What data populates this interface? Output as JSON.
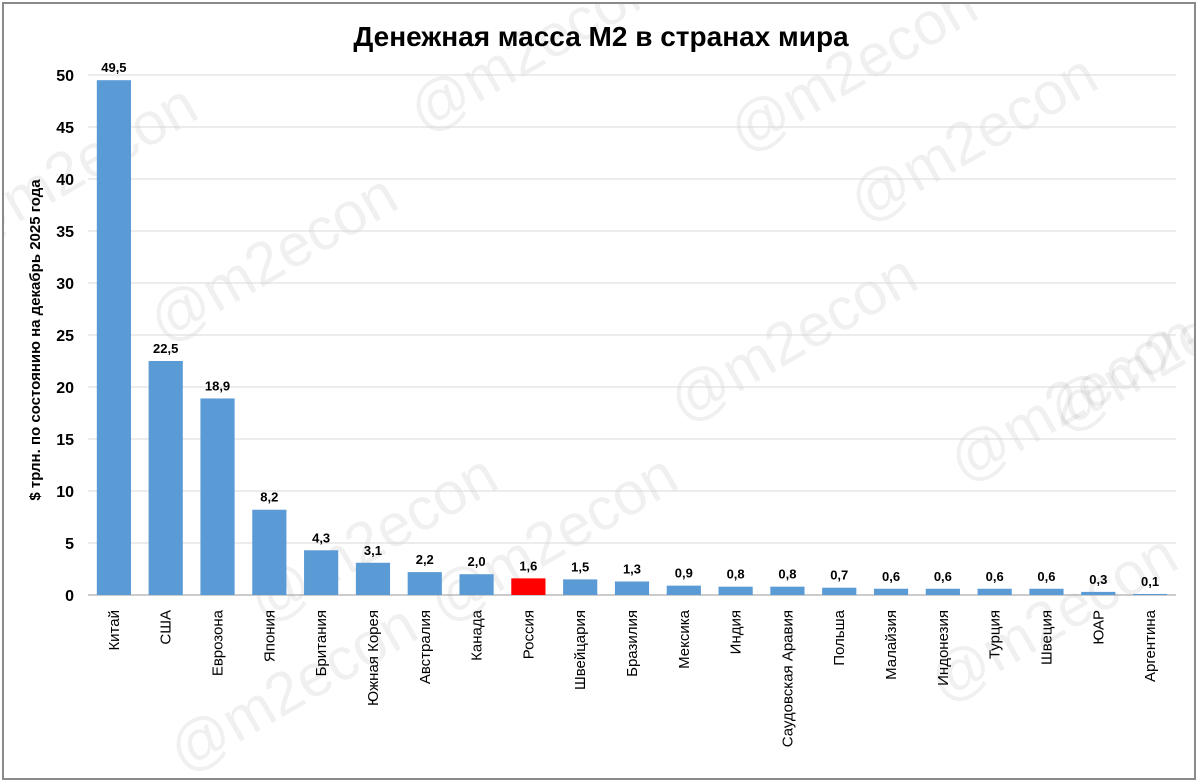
{
  "chart_data": {
    "type": "bar",
    "title": "Денежная масса М2 в странах мира",
    "ylabel": "$ трлн. по состоянию на декабрь 2025 года",
    "xlabel": "",
    "ylim": [
      0,
      50
    ],
    "yticks": [
      0,
      5,
      10,
      15,
      20,
      25,
      30,
      35,
      40,
      45,
      50
    ],
    "grid": true,
    "categories": [
      "Китай",
      "США",
      "Еврозона",
      "Япония",
      "Британия",
      "Южная Корея",
      "Австралия",
      "Канада",
      "Россия",
      "Швейцария",
      "Бразилия",
      "Мексика",
      "Индия",
      "Саудовская Аравия",
      "Польша",
      "Малайзия",
      "Индонезия",
      "Турция",
      "Швеция",
      "ЮАР",
      "Аргентина"
    ],
    "values": [
      49.5,
      22.5,
      18.9,
      8.2,
      4.3,
      3.1,
      2.2,
      2.0,
      1.6,
      1.5,
      1.3,
      0.9,
      0.8,
      0.8,
      0.7,
      0.6,
      0.6,
      0.6,
      0.6,
      0.3,
      0.1
    ],
    "data_labels": [
      "49,5",
      "22,5",
      "18,9",
      "8,2",
      "4,3",
      "3,1",
      "2,2",
      "2,0",
      "1,6",
      "1,5",
      "1,3",
      "0,9",
      "0,8",
      "0,8",
      "0,7",
      "0,6",
      "0,6",
      "0,6",
      "0,6",
      "0,3",
      "0,1"
    ],
    "bar_color": "#5b9bd5",
    "highlight": {
      "category": "Россия",
      "color": "#ff0000"
    },
    "watermark": "@m2econ"
  }
}
